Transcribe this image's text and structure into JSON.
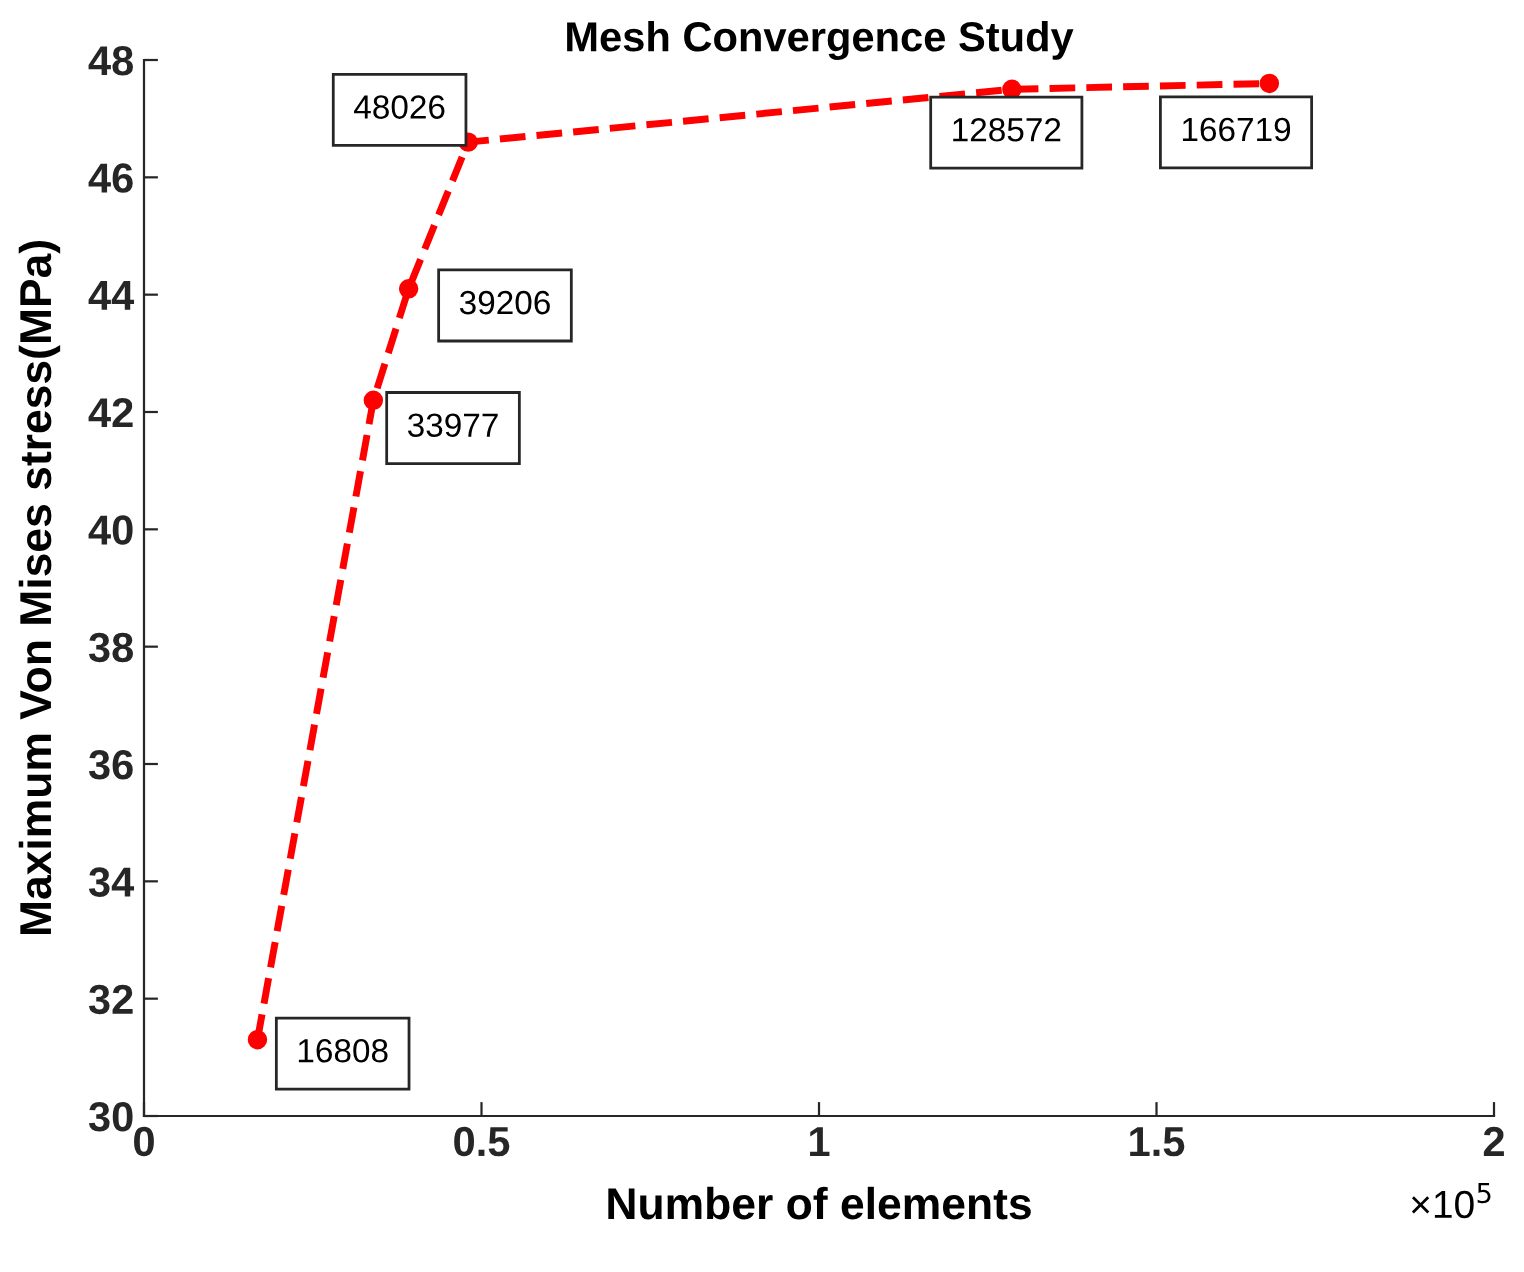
{
  "chart_data": {
    "type": "line",
    "title": "Mesh Convergence Study",
    "xlabel": "Number of elements",
    "ylabel": "Maximum Von Mises stress(MPa)",
    "series": [
      {
        "color": "#ff0000",
        "x": [
          0.16808,
          0.33977,
          0.39206,
          0.48026,
          1.28572,
          1.66719
        ],
        "values": [
          31.3,
          42.2,
          44.1,
          46.6,
          47.5,
          47.6
        ]
      }
    ],
    "marker": "circle",
    "line_style": "dashed",
    "grid": false,
    "legend": false,
    "xlim": [
      0,
      2
    ],
    "xticks": [
      0,
      0.5,
      1,
      1.5,
      2
    ],
    "ylim": [
      30,
      48
    ],
    "yticks": [
      30,
      32,
      34,
      36,
      38,
      40,
      42,
      44,
      46,
      48
    ],
    "annotations": [
      {
        "text": "16808",
        "x": 0.16808,
        "y": 31.3
      },
      {
        "text": "33977",
        "x": 0.33977,
        "y": 42.2
      },
      {
        "text": "39206",
        "x": 0.39206,
        "y": 44.1
      },
      {
        "text": "48026",
        "x": 0.48026,
        "y": 46.6
      },
      {
        "text": "128572",
        "x": 1.28572,
        "y": 47.5
      },
      {
        "text": "166719",
        "x": 1.66719,
        "y": 47.6
      },
      "×10$^{5}$"
    ]
  }
}
